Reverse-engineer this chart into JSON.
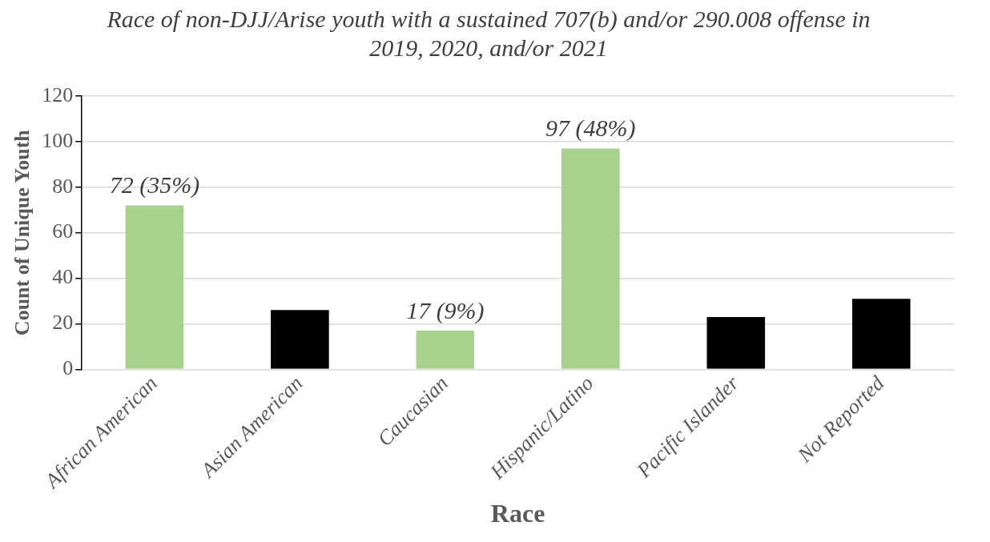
{
  "chart_data": {
    "type": "bar",
    "title": "Race of non-DJJ/Arise youth with a sustained 707(b) and/or 290.008 offense in 2019, 2020, and/or 2021",
    "xlabel": "Race",
    "ylabel": "Count of Unique Youth",
    "categories": [
      "African American",
      "Asian American",
      "Caucasian",
      "Hispanic/Latino",
      "Pacific Islander",
      "Not Reported"
    ],
    "values": [
      72,
      26,
      17,
      97,
      23,
      31
    ],
    "value_labels": [
      "72 (35%)",
      null,
      "17 (9%)",
      "97 (48%)",
      null,
      null
    ],
    "colors": [
      "#a9d18e",
      "#000000",
      "#a9d18e",
      "#a9d18e",
      "#000000",
      "#000000"
    ],
    "ylim": [
      0,
      120
    ],
    "yticks": [
      0,
      20,
      40,
      60,
      80,
      100,
      120
    ],
    "grid": "y",
    "legend": false
  }
}
